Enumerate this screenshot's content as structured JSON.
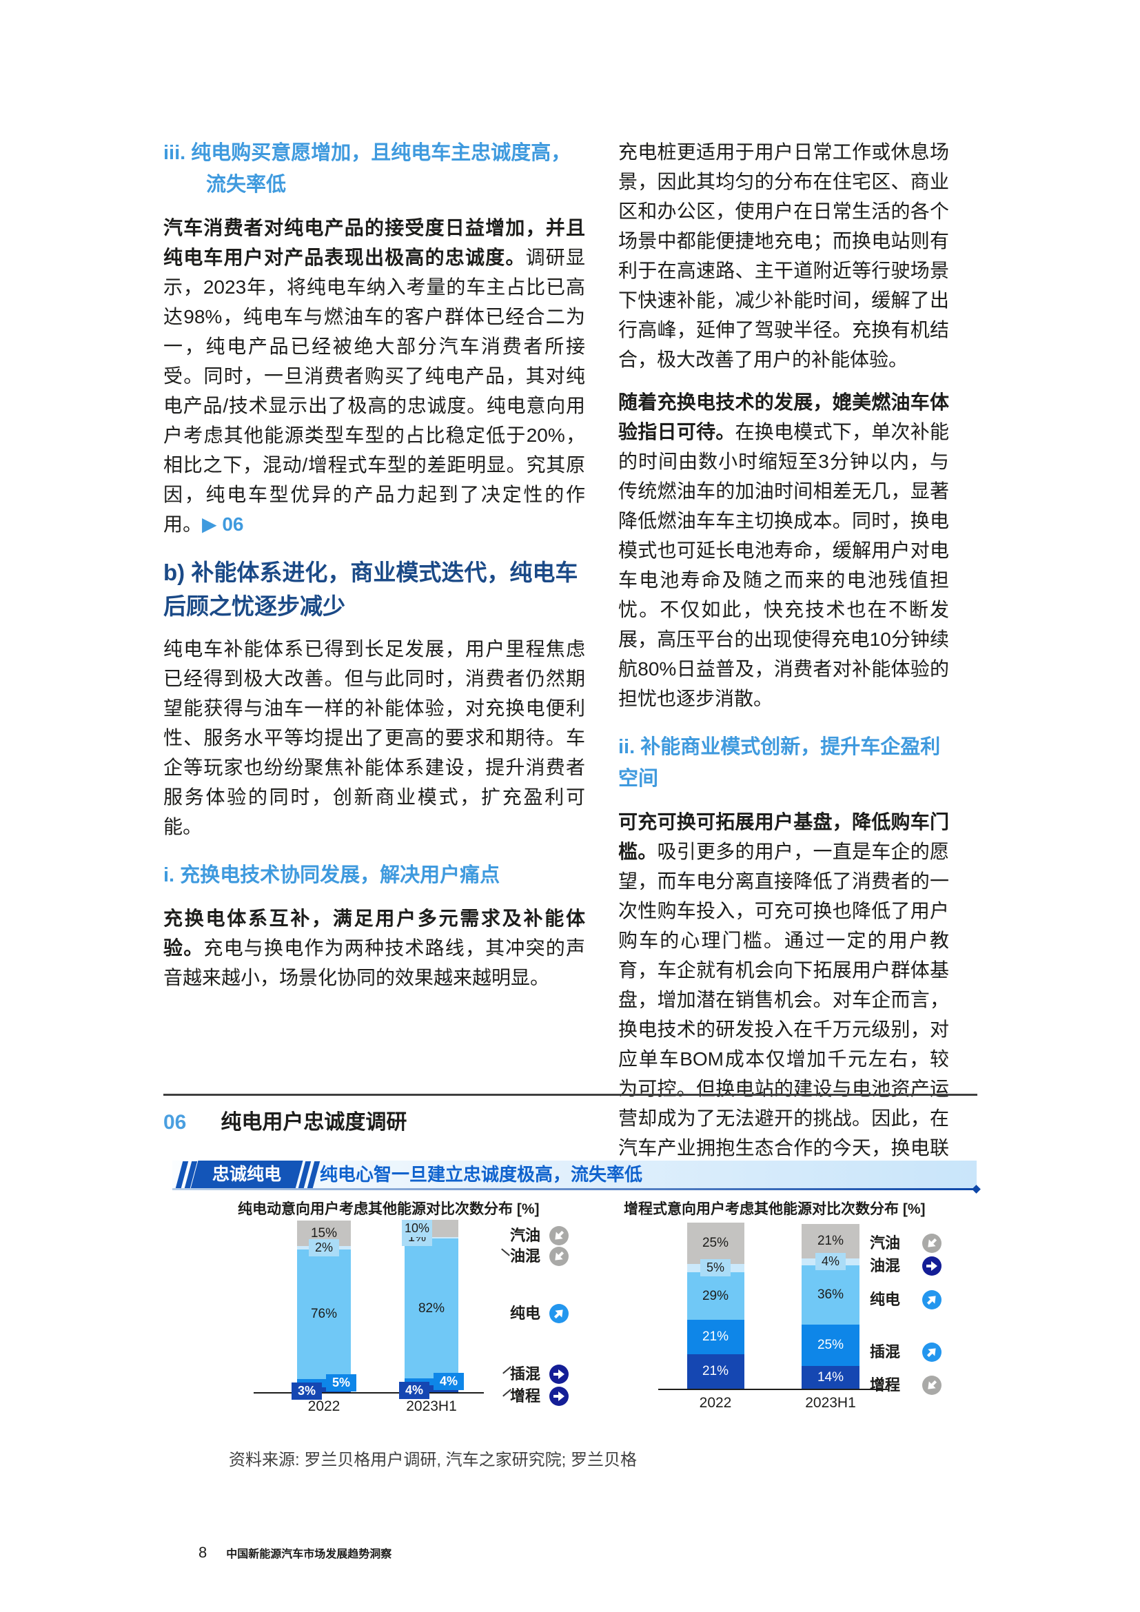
{
  "page": {
    "footer_page_number": "8",
    "footer_title": "中国新能源汽车市场发展趋势洞察"
  },
  "left_column": {
    "heading_iii": "iii. 纯电购买意愿增加，且纯电车主忠诚度高，流失率低",
    "para1_bold": "汽车消费者对纯电产品的接受度日益增加，并且纯电车用户对产品表现出极高的忠诚度。",
    "para1_text": "调研显示，2023年，将纯电车纳入考量的车主占比已高达98%，纯电车与燃油车的客户群体已经合二为一，纯电产品已经被绝大部分汽车消费者所接受。同时，一旦消费者购买了纯电产品，其对纯电产品/技术显示出了极高的忠诚度。纯电意向用户考虑其他能源类型车型的占比稳定低于20%，相比之下，混动/增程式车型的差距明显。究其原因，纯电车型优异的产品力起到了决定性的作用。",
    "para1_ref": "▶ 06",
    "heading_b": "b) 补能体系进化，商业模式迭代，纯电车后顾之忧逐步减少",
    "para2": "纯电车补能体系已得到长足发展，用户里程焦虑已经得到极大改善。但与此同时，消费者仍然期望能获得与油车一样的补能体验，对充换电便利性、服务水平等均提出了更高的要求和期待。车企等玩家也纷纷聚焦补能体系建设，提升消费者服务体验的同时，创新商业模式，扩充盈利可能。",
    "heading_i": "i. 充换电技术协同发展，解决用户痛点",
    "para3_bold": "充换电体系互补，满足用户多元需求及补能体验。",
    "para3_text": "充电与换电作为两种技术路线，其冲突的声音越来越小，场景化协同的效果越来越明显。"
  },
  "right_column": {
    "para1": "充电桩更适用于用户日常工作或休息场景，因此其均匀的分布在住宅区、商业区和办公区，使用户在日常生活的各个场景中都能便捷地充电；而换电站则有利于在高速路、主干道附近等行驶场景下快速补能，减少补能时间，缓解了出行高峰，延伸了驾驶半径。充换有机结合，极大改善了用户的补能体验。",
    "para2_bold": "随着充换电技术的发展，媲美燃油车体验指日可待。",
    "para2_text": "在换电模式下，单次补能的时间由数小时缩短至3分钟以内，与传统燃油车的加油时间相差无几，显著降低燃油车车主切换成本。同时，换电模式也可延长电池寿命，缓解用户对电车电池寿命及随之而来的电池残值担忧。不仅如此，快充技术也在不断发展，高压平台的出现使得充电10分钟续航80%日益普及，消费者对补能体验的担忧也逐步消散。",
    "heading_ii": "ii. 补能商业模式创新，提升车企盈利空间",
    "para3_bold": "可充可换可拓展用户基盘，降低购车门槛。",
    "para3_text": "吸引更多的用户，一直是车企的愿望，而车电分离直接降低了消费者的一次性购车投入，可充可换也降低了用户购车的心理门槛。通过一定的用户教育，车企就有机会向下拓展用户群体基盘，增加潜在销售机会。对车企而言，换电技术的研发投入在千万元级别，对应单车BOM成本仅增加千元左右，较为可控。但换电站的建设与电池资产运营却成为了无法避开的挑战。因此，在汽车产业拥抱生态合作的今天，换电联盟的成立"
  },
  "figure": {
    "number": "06",
    "title": "纯电用户忠诚度调研",
    "banner_tag": "忠诚纯电",
    "banner_text": "纯电心智一旦建立忠诚度极高，流失率低",
    "source": "资料来源: 罗兰贝格用户调研, 汽车之家研究院; 罗兰贝格",
    "accent_blue": "#3f9ade",
    "accent_navy": "#1b4a87",
    "banner_navy": "#1355b8"
  },
  "chart_data": [
    {
      "type": "bar",
      "stacked": true,
      "title": "纯电动意向用户考虑其他能源对比次数分布 [%]",
      "categories": [
        "2022",
        "2023H1"
      ],
      "ylim": [
        0,
        100
      ],
      "grid": false,
      "legend_position": "right",
      "series": [
        {
          "name": "增程",
          "values": [
            3,
            4
          ],
          "color": "#1547b2",
          "text_color": "#ffffff"
        },
        {
          "name": "插混",
          "values": [
            5,
            4
          ],
          "color": "#0e86e8",
          "text_color": "#ffffff"
        },
        {
          "name": "纯电",
          "values": [
            76,
            82
          ],
          "color": "#70c8f6",
          "text_color": "#1d1d1b"
        },
        {
          "name": "油混",
          "values": [
            2,
            1
          ],
          "color": "#cbe9fb",
          "text_color": "#1d1d1b"
        },
        {
          "name": "汽油",
          "values": [
            15,
            10
          ],
          "color": "#c4c3c1",
          "text_color": "#1d1d1b"
        }
      ],
      "legend": [
        {
          "label": "汽油",
          "trend": "down"
        },
        {
          "label": "油混",
          "trend": "down"
        },
        {
          "label": "纯电",
          "trend": "up"
        },
        {
          "label": "插混",
          "trend": "flat"
        },
        {
          "label": "增程",
          "trend": "flat"
        }
      ]
    },
    {
      "type": "bar",
      "stacked": true,
      "title": "增程式意向用户考虑其他能源对比次数分布 [%]",
      "categories": [
        "2022",
        "2023H1"
      ],
      "ylim": [
        0,
        100
      ],
      "grid": false,
      "legend_position": "right",
      "series": [
        {
          "name": "增程",
          "values": [
            21,
            14
          ],
          "color": "#1547b2",
          "text_color": "#ffffff"
        },
        {
          "name": "插混",
          "values": [
            21,
            25
          ],
          "color": "#0e86e8",
          "text_color": "#ffffff"
        },
        {
          "name": "纯电",
          "values": [
            29,
            36
          ],
          "color": "#70c8f6",
          "text_color": "#1d1d1b"
        },
        {
          "name": "油混",
          "values": [
            5,
            4
          ],
          "color": "#cbe9fb",
          "text_color": "#1d1d1b"
        },
        {
          "name": "汽油",
          "values": [
            25,
            21
          ],
          "color": "#c4c3c1",
          "text_color": "#1d1d1b"
        }
      ],
      "legend": [
        {
          "label": "汽油",
          "trend": "down"
        },
        {
          "label": "油混",
          "trend": "flat"
        },
        {
          "label": "纯电",
          "trend": "up"
        },
        {
          "label": "插混",
          "trend": "up"
        },
        {
          "label": "增程",
          "trend": "down"
        }
      ]
    }
  ]
}
